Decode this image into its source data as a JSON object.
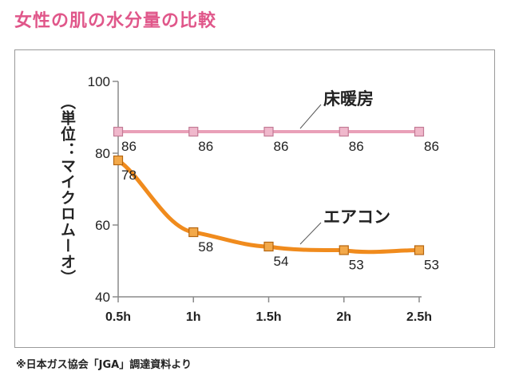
{
  "title": "女性の肌の水分量の比較",
  "footnote": "※日本ガス協会「JGA」調達資料より",
  "chart_data": {
    "type": "line",
    "ylabel": "（単位：マイクロムーオ）",
    "ylim": [
      40,
      100
    ],
    "yticks": [
      40,
      60,
      80,
      100
    ],
    "categories": [
      "0.5h",
      "1h",
      "1.5h",
      "2h",
      "2.5h"
    ],
    "series": [
      {
        "name": "床暖房",
        "values": [
          86,
          86,
          86,
          86,
          86
        ],
        "color": "#e9a0b8",
        "marker": "#f0b8cc",
        "marker_edge": "#c27a95"
      },
      {
        "name": "エアコン",
        "values": [
          78,
          58,
          54,
          53,
          53
        ],
        "color": "#f08b1d",
        "marker": "#f3a94a",
        "marker_edge": "#b5650f"
      }
    ],
    "grid": false,
    "legend": "inline labels near lines"
  }
}
